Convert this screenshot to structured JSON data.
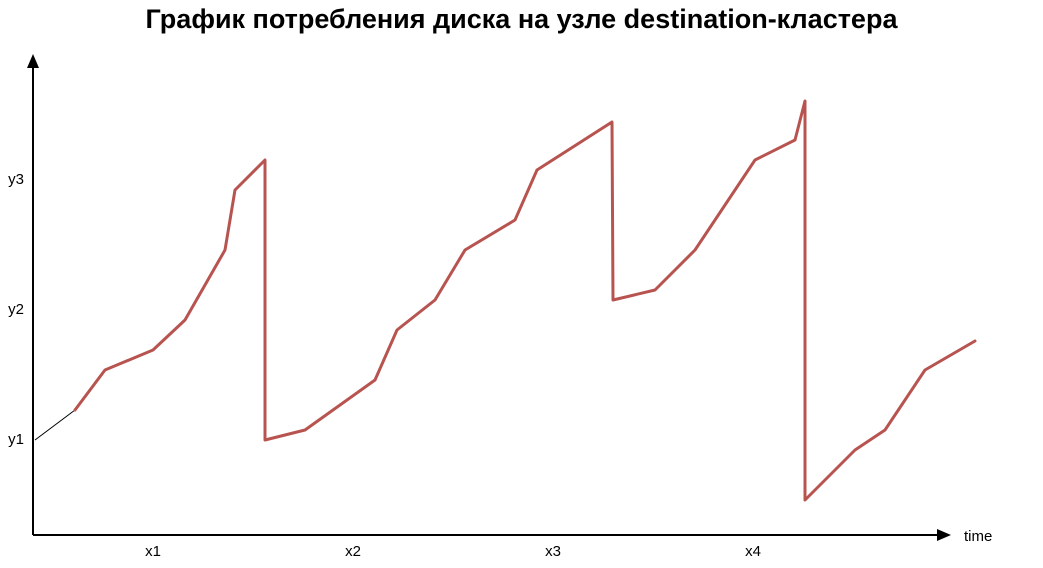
{
  "chart_data": {
    "type": "line",
    "title": "График потребления диска на узле destination-кластера",
    "xlabel": "time",
    "ylabel": "",
    "x_ticks": [
      {
        "label": "x1",
        "value": 153
      },
      {
        "label": "x2",
        "value": 353
      },
      {
        "label": "x3",
        "value": 553
      },
      {
        "label": "x4",
        "value": 753
      }
    ],
    "y_ticks": [
      {
        "label": "y1",
        "value": 96
      },
      {
        "label": "y2",
        "value": 226
      },
      {
        "label": "y3",
        "value": 356
      }
    ],
    "xlim": [
      33,
      950
    ],
    "ylim": [
      0,
      510
    ],
    "grid": false,
    "colors": {
      "axis": "#000000",
      "series": "#b85450",
      "lead_in": "#000000"
    },
    "lead_in": [
      {
        "x": 35,
        "y": 95
      },
      {
        "x": 75,
        "y": 125
      }
    ],
    "series": [
      {
        "points": [
          {
            "x": 75,
            "y": 125
          },
          {
            "x": 105,
            "y": 165
          },
          {
            "x": 153,
            "y": 185
          },
          {
            "x": 185,
            "y": 215
          },
          {
            "x": 225,
            "y": 285
          },
          {
            "x": 235,
            "y": 345
          },
          {
            "x": 265,
            "y": 375
          },
          {
            "x": 265,
            "y": 95
          },
          {
            "x": 305,
            "y": 105
          },
          {
            "x": 375,
            "y": 155
          },
          {
            "x": 397,
            "y": 205
          },
          {
            "x": 435,
            "y": 235
          },
          {
            "x": 465,
            "y": 285
          },
          {
            "x": 515,
            "y": 315
          },
          {
            "x": 537,
            "y": 365
          },
          {
            "x": 612,
            "y": 413
          },
          {
            "x": 613,
            "y": 235
          },
          {
            "x": 655,
            "y": 245
          },
          {
            "x": 695,
            "y": 285
          },
          {
            "x": 755,
            "y": 375
          },
          {
            "x": 795,
            "y": 395
          },
          {
            "x": 805,
            "y": 434
          },
          {
            "x": 805,
            "y": 35
          },
          {
            "x": 855,
            "y": 85
          },
          {
            "x": 885,
            "y": 105
          },
          {
            "x": 925,
            "y": 165
          },
          {
            "x": 975,
            "y": 194
          }
        ]
      }
    ]
  }
}
